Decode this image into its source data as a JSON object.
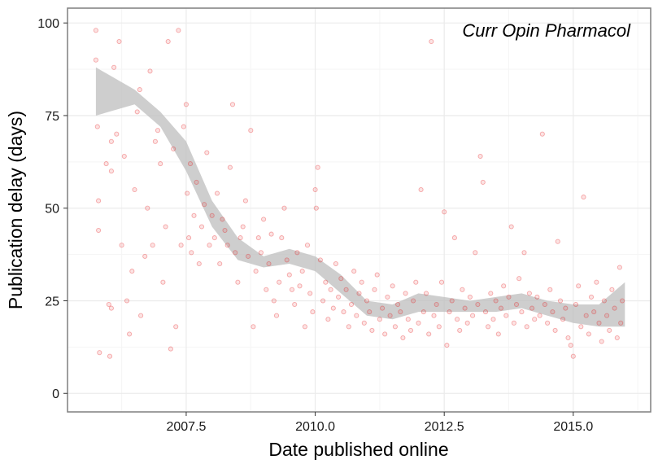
{
  "chart_data": {
    "type": "scatter",
    "annotation": "Curr Opin Pharmacol",
    "xlabel": "Date published online",
    "ylabel": "Publication delay (days)",
    "xlim": [
      2005.2,
      2016.5
    ],
    "ylim": [
      -5,
      104
    ],
    "x_ticks": [
      2007.5,
      2010.0,
      2012.5,
      2015.0
    ],
    "x_tick_labels": [
      "2007.5",
      "2010.0",
      "2012.5",
      "2015.0"
    ],
    "y_ticks": [
      0,
      25,
      50,
      75,
      100
    ],
    "y_tick_labels": [
      "0",
      "25",
      "50",
      "75",
      "100"
    ],
    "grid": true,
    "colors": {
      "points": "#e41a1c",
      "smooth_band": "#bdbdbd",
      "grid_major": "#ebebeb",
      "grid_minor": "#f5f5f5",
      "panel_border": "#7f7f7f"
    },
    "smooth_band": {
      "x": [
        2005.75,
        2006.0,
        2006.5,
        2007.0,
        2007.5,
        2008.0,
        2008.5,
        2009.0,
        2009.5,
        2010.0,
        2010.5,
        2011.0,
        2011.5,
        2012.0,
        2012.5,
        2013.0,
        2013.5,
        2014.0,
        2014.5,
        2015.0,
        2015.5,
        2016.0
      ],
      "lower": [
        75,
        76,
        78,
        72,
        60,
        45,
        36,
        34,
        35,
        33,
        27,
        21,
        20,
        22,
        22,
        22,
        22,
        23,
        21,
        19,
        18,
        18
      ],
      "upper": [
        88,
        86,
        82,
        76,
        68,
        52,
        42,
        37,
        39,
        37,
        32,
        25,
        24,
        27,
        26,
        25,
        26,
        27,
        25,
        24,
        24,
        30
      ]
    },
    "points": [
      [
        2005.75,
        98
      ],
      [
        2005.75,
        90
      ],
      [
        2005.78,
        72
      ],
      [
        2005.8,
        52
      ],
      [
        2005.8,
        44
      ],
      [
        2005.82,
        11
      ],
      [
        2005.95,
        62
      ],
      [
        2006.0,
        24
      ],
      [
        2006.02,
        10
      ],
      [
        2006.05,
        68
      ],
      [
        2006.05,
        23
      ],
      [
        2006.05,
        60
      ],
      [
        2006.1,
        88
      ],
      [
        2006.15,
        70
      ],
      [
        2006.2,
        95
      ],
      [
        2006.25,
        40
      ],
      [
        2006.3,
        64
      ],
      [
        2006.35,
        25
      ],
      [
        2006.4,
        16
      ],
      [
        2006.45,
        33
      ],
      [
        2006.5,
        55
      ],
      [
        2006.55,
        76
      ],
      [
        2006.6,
        82
      ],
      [
        2006.62,
        21
      ],
      [
        2006.7,
        37
      ],
      [
        2006.75,
        50
      ],
      [
        2006.8,
        87
      ],
      [
        2006.85,
        40
      ],
      [
        2006.9,
        68
      ],
      [
        2006.95,
        71
      ],
      [
        2007.0,
        62
      ],
      [
        2007.05,
        30
      ],
      [
        2007.1,
        45
      ],
      [
        2007.15,
        95
      ],
      [
        2007.2,
        12
      ],
      [
        2007.25,
        66
      ],
      [
        2007.3,
        18
      ],
      [
        2007.35,
        98
      ],
      [
        2007.4,
        40
      ],
      [
        2007.45,
        72
      ],
      [
        2007.5,
        78
      ],
      [
        2007.52,
        54
      ],
      [
        2007.55,
        42
      ],
      [
        2007.58,
        62
      ],
      [
        2007.6,
        38
      ],
      [
        2007.65,
        48
      ],
      [
        2007.7,
        57
      ],
      [
        2007.75,
        35
      ],
      [
        2007.8,
        45
      ],
      [
        2007.85,
        51
      ],
      [
        2007.9,
        65
      ],
      [
        2007.95,
        40
      ],
      [
        2008.0,
        48
      ],
      [
        2008.05,
        42
      ],
      [
        2008.1,
        54
      ],
      [
        2008.15,
        35
      ],
      [
        2008.2,
        47
      ],
      [
        2008.25,
        44
      ],
      [
        2008.3,
        40
      ],
      [
        2008.35,
        61
      ],
      [
        2008.4,
        78
      ],
      [
        2008.45,
        38
      ],
      [
        2008.5,
        30
      ],
      [
        2008.55,
        42
      ],
      [
        2008.6,
        45
      ],
      [
        2008.65,
        52
      ],
      [
        2008.7,
        37
      ],
      [
        2008.75,
        71
      ],
      [
        2008.8,
        18
      ],
      [
        2008.85,
        33
      ],
      [
        2008.9,
        42
      ],
      [
        2008.95,
        38
      ],
      [
        2009.0,
        47
      ],
      [
        2009.05,
        28
      ],
      [
        2009.1,
        35
      ],
      [
        2009.15,
        43
      ],
      [
        2009.2,
        25
      ],
      [
        2009.25,
        21
      ],
      [
        2009.3,
        30
      ],
      [
        2009.35,
        42
      ],
      [
        2009.4,
        50
      ],
      [
        2009.45,
        36
      ],
      [
        2009.5,
        32
      ],
      [
        2009.55,
        28
      ],
      [
        2009.6,
        24
      ],
      [
        2009.65,
        38
      ],
      [
        2009.7,
        29
      ],
      [
        2009.75,
        33
      ],
      [
        2009.8,
        18
      ],
      [
        2009.85,
        40
      ],
      [
        2009.9,
        27
      ],
      [
        2009.95,
        22
      ],
      [
        2010.0,
        55
      ],
      [
        2010.02,
        50
      ],
      [
        2010.05,
        61
      ],
      [
        2010.1,
        36
      ],
      [
        2010.15,
        25
      ],
      [
        2010.2,
        30
      ],
      [
        2010.25,
        20
      ],
      [
        2010.3,
        28
      ],
      [
        2010.35,
        23
      ],
      [
        2010.4,
        35
      ],
      [
        2010.45,
        26
      ],
      [
        2010.5,
        31
      ],
      [
        2010.55,
        22
      ],
      [
        2010.6,
        28
      ],
      [
        2010.65,
        18
      ],
      [
        2010.7,
        24
      ],
      [
        2010.75,
        33
      ],
      [
        2010.8,
        21
      ],
      [
        2010.85,
        27
      ],
      [
        2010.9,
        30
      ],
      [
        2010.95,
        19
      ],
      [
        2011.0,
        25
      ],
      [
        2011.05,
        22
      ],
      [
        2011.1,
        17
      ],
      [
        2011.15,
        28
      ],
      [
        2011.2,
        32
      ],
      [
        2011.25,
        20
      ],
      [
        2011.3,
        23
      ],
      [
        2011.35,
        16
      ],
      [
        2011.4,
        26
      ],
      [
        2011.45,
        21
      ],
      [
        2011.5,
        29
      ],
      [
        2011.55,
        18
      ],
      [
        2011.6,
        24
      ],
      [
        2011.65,
        22
      ],
      [
        2011.7,
        15
      ],
      [
        2011.75,
        27
      ],
      [
        2011.8,
        20
      ],
      [
        2011.85,
        17
      ],
      [
        2011.9,
        25
      ],
      [
        2011.95,
        30
      ],
      [
        2012.0,
        19
      ],
      [
        2012.05,
        55
      ],
      [
        2012.1,
        22
      ],
      [
        2012.15,
        27
      ],
      [
        2012.2,
        16
      ],
      [
        2012.25,
        95
      ],
      [
        2012.3,
        21
      ],
      [
        2012.35,
        24
      ],
      [
        2012.4,
        18
      ],
      [
        2012.45,
        30
      ],
      [
        2012.5,
        49
      ],
      [
        2012.55,
        13
      ],
      [
        2012.6,
        22
      ],
      [
        2012.65,
        25
      ],
      [
        2012.7,
        42
      ],
      [
        2012.75,
        20
      ],
      [
        2012.8,
        17
      ],
      [
        2012.85,
        28
      ],
      [
        2012.9,
        23
      ],
      [
        2012.95,
        19
      ],
      [
        2013.0,
        26
      ],
      [
        2013.05,
        21
      ],
      [
        2013.1,
        38
      ],
      [
        2013.15,
        24
      ],
      [
        2013.2,
        64
      ],
      [
        2013.25,
        57
      ],
      [
        2013.3,
        22
      ],
      [
        2013.35,
        18
      ],
      [
        2013.4,
        27
      ],
      [
        2013.45,
        20
      ],
      [
        2013.5,
        25
      ],
      [
        2013.55,
        16
      ],
      [
        2013.6,
        23
      ],
      [
        2013.65,
        29
      ],
      [
        2013.7,
        21
      ],
      [
        2013.75,
        26
      ],
      [
        2013.8,
        45
      ],
      [
        2013.85,
        19
      ],
      [
        2013.9,
        24
      ],
      [
        2013.95,
        31
      ],
      [
        2014.0,
        22
      ],
      [
        2014.05,
        38
      ],
      [
        2014.1,
        18
      ],
      [
        2014.15,
        27
      ],
      [
        2014.2,
        23
      ],
      [
        2014.25,
        20
      ],
      [
        2014.3,
        26
      ],
      [
        2014.35,
        21
      ],
      [
        2014.4,
        70
      ],
      [
        2014.45,
        24
      ],
      [
        2014.5,
        19
      ],
      [
        2014.55,
        28
      ],
      [
        2014.6,
        22
      ],
      [
        2014.65,
        17
      ],
      [
        2014.7,
        41
      ],
      [
        2014.75,
        25
      ],
      [
        2014.8,
        20
      ],
      [
        2014.85,
        23
      ],
      [
        2014.9,
        15
      ],
      [
        2014.95,
        13
      ],
      [
        2015.0,
        10
      ],
      [
        2015.05,
        24
      ],
      [
        2015.1,
        29
      ],
      [
        2015.15,
        18
      ],
      [
        2015.2,
        53
      ],
      [
        2015.25,
        21
      ],
      [
        2015.3,
        16
      ],
      [
        2015.35,
        26
      ],
      [
        2015.4,
        22
      ],
      [
        2015.45,
        30
      ],
      [
        2015.5,
        19
      ],
      [
        2015.55,
        14
      ],
      [
        2015.6,
        25
      ],
      [
        2015.65,
        21
      ],
      [
        2015.7,
        17
      ],
      [
        2015.75,
        28
      ],
      [
        2015.8,
        23
      ],
      [
        2015.85,
        15
      ],
      [
        2015.9,
        34
      ],
      [
        2015.92,
        19
      ],
      [
        2015.95,
        25
      ]
    ]
  }
}
